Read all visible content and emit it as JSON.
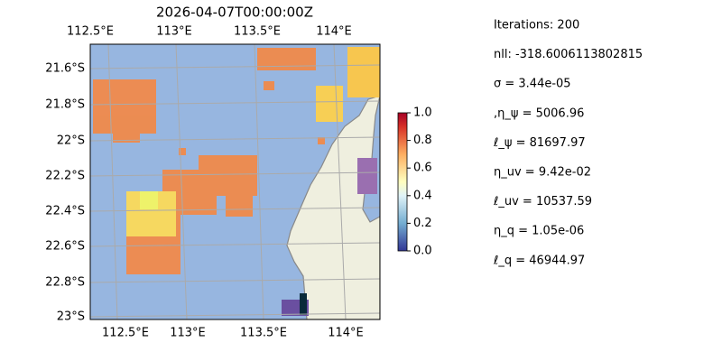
{
  "map": {
    "title": "2026-04-07T00:00:00Z",
    "x_labels_top": [
      "112.5°E",
      "113°E",
      "113.5°E",
      "114°E"
    ],
    "x_labels_bottom": [
      "112.5°E",
      "113°E",
      "113.5°E",
      "114°E"
    ],
    "y_labels": [
      "21.6°S",
      "21.8°S",
      "22°S",
      "22.2°S",
      "22.4°S",
      "22.6°S",
      "22.8°S",
      "23°S"
    ],
    "colorbar": {
      "lim": [
        0,
        1
      ],
      "ticks": [
        {
          "value": 0,
          "label": "0.0"
        },
        {
          "value": 0.2,
          "label": "0.2"
        },
        {
          "value": 0.4,
          "label": "0.4"
        },
        {
          "value": 0.6,
          "label": "0.6"
        },
        {
          "value": 0.8,
          "label": "0.8"
        },
        {
          "value": 1,
          "label": "1.0"
        }
      ]
    },
    "stats": [
      "Iterations: 200",
      "nll: -318.6006113802815",
      "σ = 3.44e-05",
      ",η_ψ = 5006.96",
      "ℓ_ψ = 81697.97",
      "η_uv = 9.42e-02",
      "ℓ_uv = 10537.59",
      "η_q = 1.05e-06",
      "ℓ_q = 46944.97"
    ]
  }
}
